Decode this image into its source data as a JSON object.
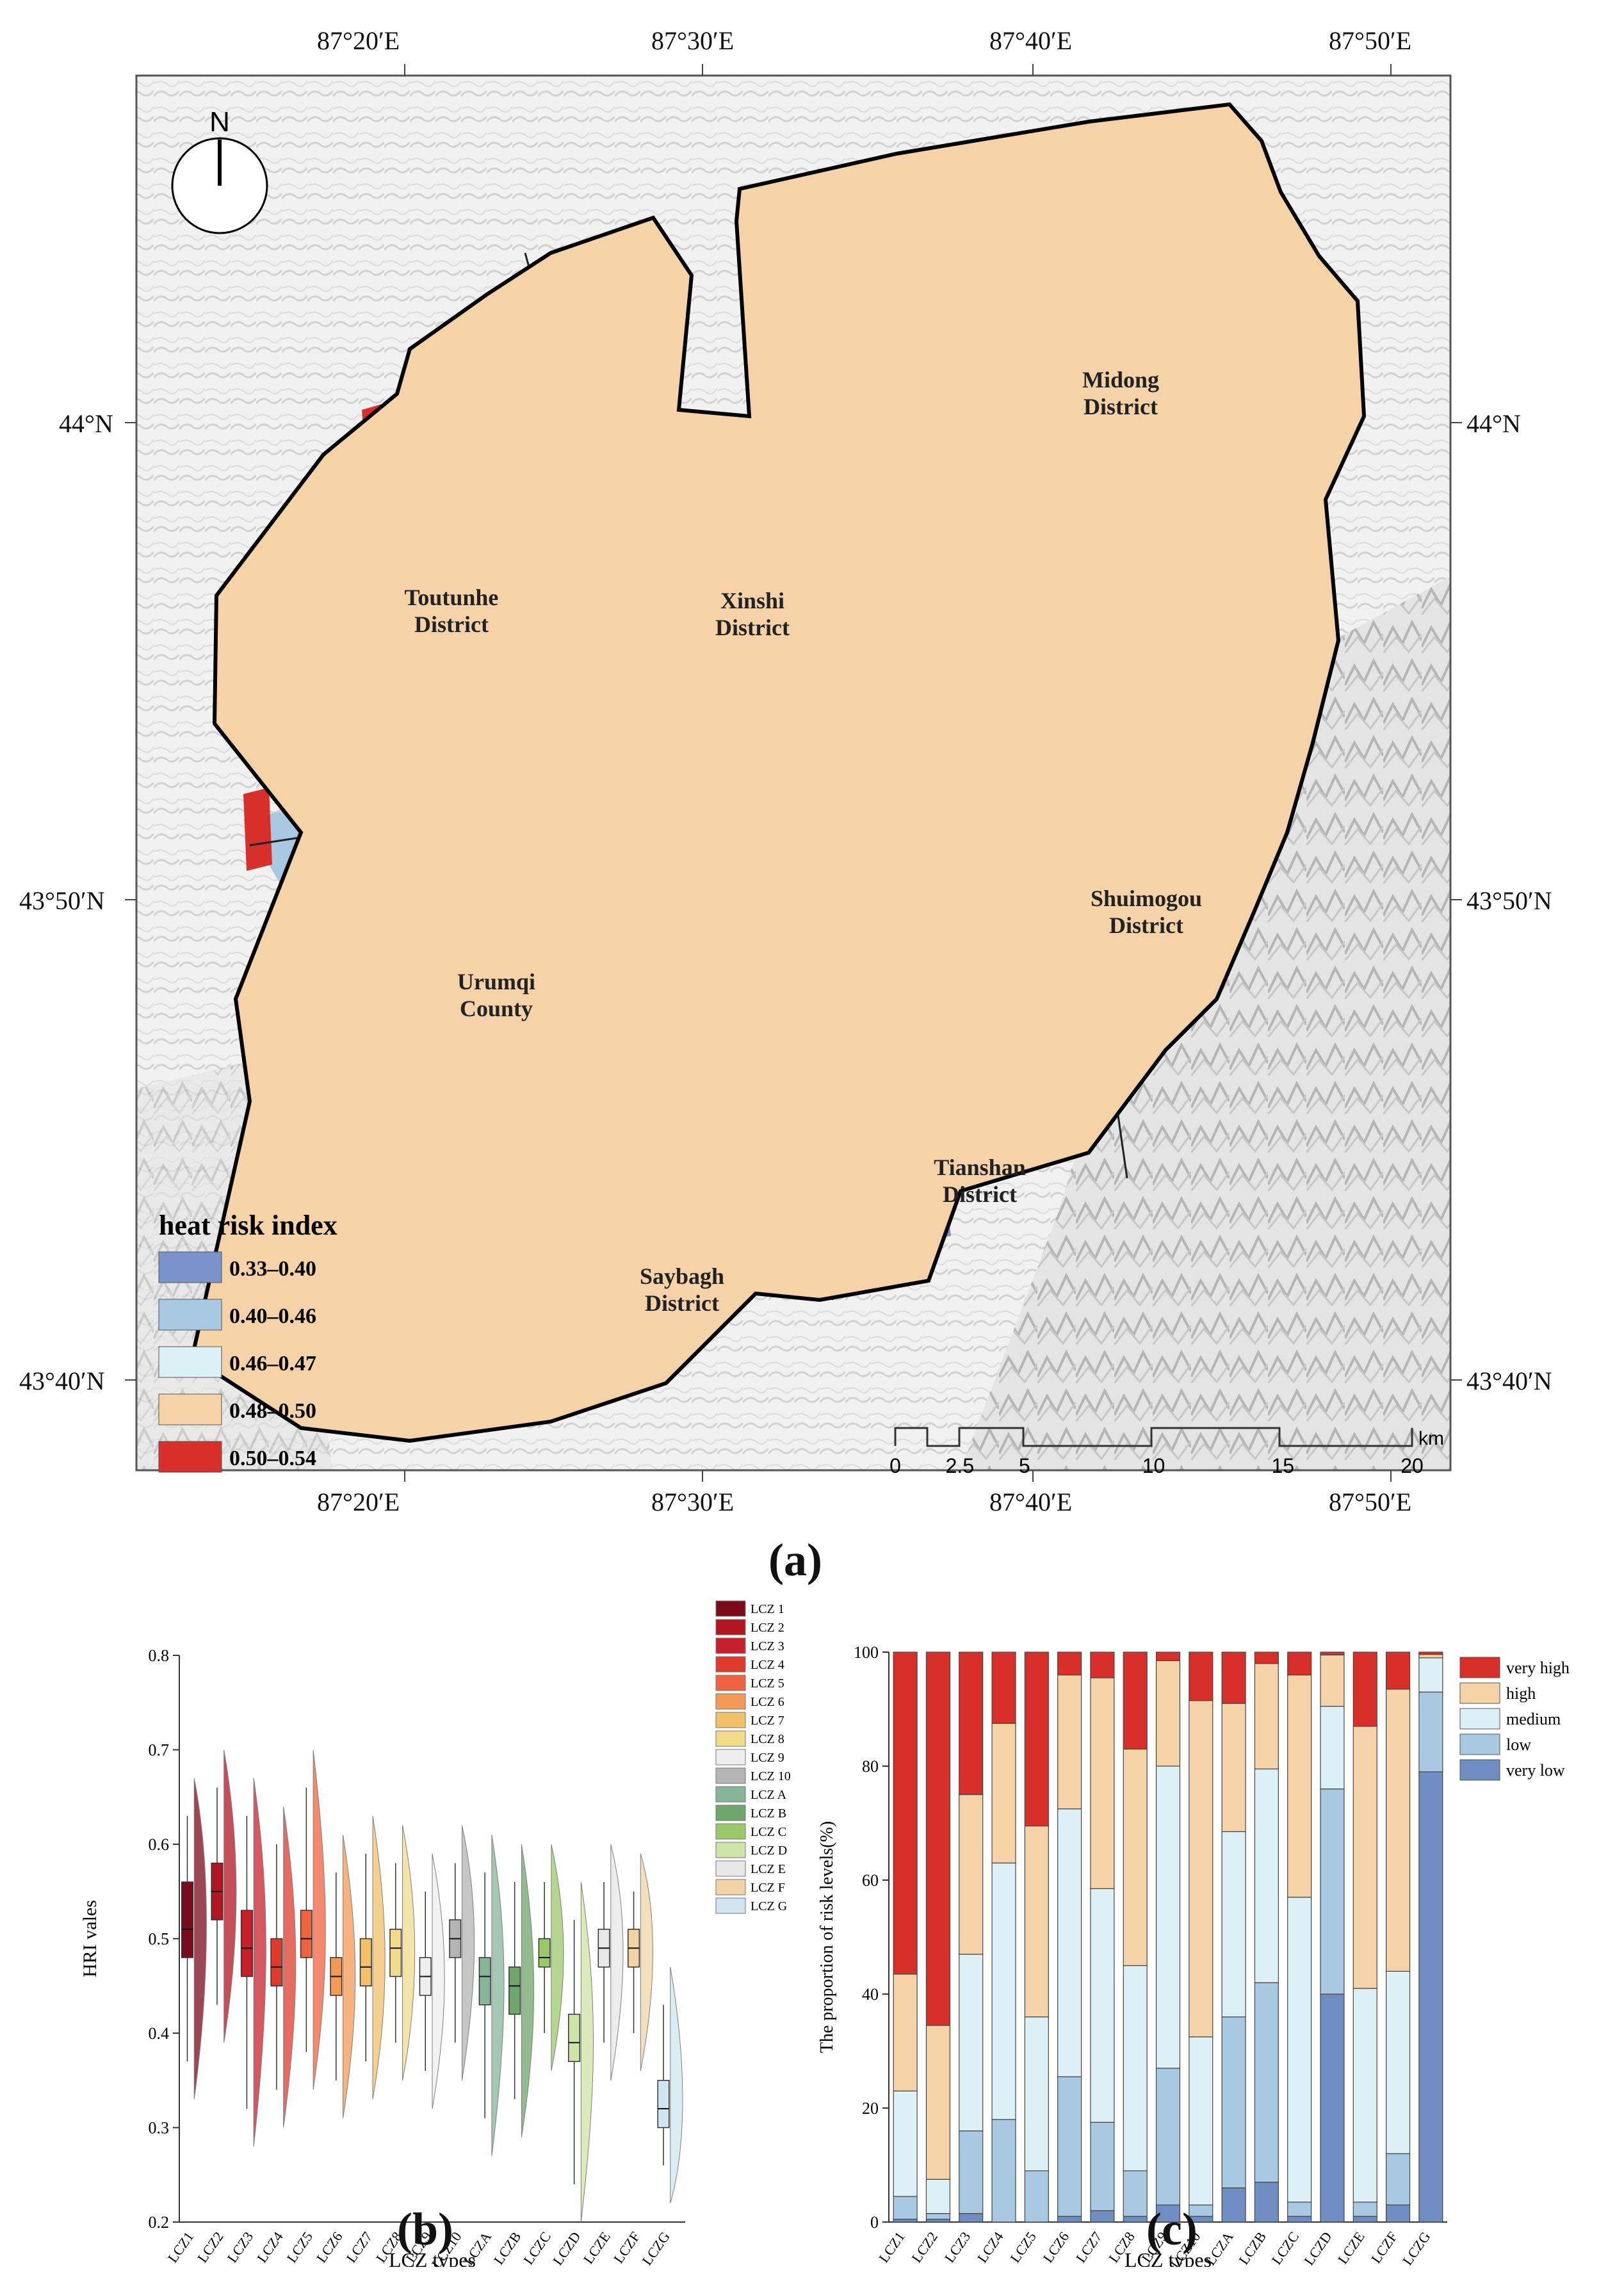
{
  "panels": {
    "a": "(a)",
    "b": "(b)",
    "c": "(c)"
  },
  "map": {
    "lon_labels": [
      "87°20′E",
      "87°30′E",
      "87°40′E",
      "87°50′E"
    ],
    "lat_labels": [
      "44°N",
      "43°50′N",
      "43°40′N"
    ],
    "north_label": "N",
    "districts": [
      {
        "name1": "Midong",
        "name2": "District"
      },
      {
        "name1": "Toutunhe",
        "name2": "District"
      },
      {
        "name1": "Xinshi",
        "name2": "District"
      },
      {
        "name1": "Shuimogou",
        "name2": "District"
      },
      {
        "name1": "Urumqi",
        "name2": "County"
      },
      {
        "name1": "Tianshan",
        "name2": "District"
      },
      {
        "name1": "Saybagh",
        "name2": "District"
      }
    ],
    "legend": {
      "title": "heat risk index",
      "items": [
        {
          "label": "0.33–0.40",
          "color": "#7a93c8"
        },
        {
          "label": "0.40–0.46",
          "color": "#a9c8e2"
        },
        {
          "label": "0.46–0.47",
          "color": "#dcf0f6"
        },
        {
          "label": "0.48–0.50",
          "color": "#f6d2a8"
        },
        {
          "label": "0.50–0.54",
          "color": "#d7302a"
        }
      ]
    },
    "scale_bar": {
      "ticks": [
        "0",
        "2.5",
        "5",
        "10",
        "15",
        "20"
      ],
      "unit": "km"
    }
  },
  "chart_data": [
    {
      "type": "box",
      "panel": "b",
      "categories": [
        "LCZ1",
        "LCZ2",
        "LCZ3",
        "LCZ4",
        "LCZ5",
        "LCZ6",
        "LCZ7",
        "LCZ8",
        "LCZ9",
        "LCZ10",
        "LCZA",
        "LCZB",
        "LCZC",
        "LCZD",
        "LCZE",
        "LCZF",
        "LCZG"
      ],
      "colors": [
        "#7b0a1a",
        "#b11522",
        "#c8202a",
        "#de3a2c",
        "#ef6440",
        "#f39a56",
        "#f3c06a",
        "#f2dc8c",
        "#eeeeee",
        "#b4b4b4",
        "#86b598",
        "#6ea66c",
        "#9bc96a",
        "#cfe4a8",
        "#e8e8e8",
        "#f2d3a6",
        "#cfe6f0"
      ],
      "legend_labels": [
        "LCZ 1",
        "LCZ 2",
        "LCZ 3",
        "LCZ 4",
        "LCZ 5",
        "LCZ 6",
        "LCZ 7",
        "LCZ 8",
        "LCZ 9",
        "LCZ 10",
        "LCZ A",
        "LCZ B",
        "LCZ C",
        "LCZ D",
        "LCZ E",
        "LCZ F",
        "LCZ G"
      ],
      "stats": [
        {
          "min": 0.37,
          "q1": 0.48,
          "median": 0.51,
          "q3": 0.56,
          "max": 0.63
        },
        {
          "min": 0.43,
          "q1": 0.52,
          "median": 0.55,
          "q3": 0.58,
          "max": 0.66
        },
        {
          "min": 0.32,
          "q1": 0.46,
          "median": 0.49,
          "q3": 0.53,
          "max": 0.63
        },
        {
          "min": 0.34,
          "q1": 0.45,
          "median": 0.47,
          "q3": 0.5,
          "max": 0.6
        },
        {
          "min": 0.38,
          "q1": 0.48,
          "median": 0.5,
          "q3": 0.53,
          "max": 0.66
        },
        {
          "min": 0.35,
          "q1": 0.44,
          "median": 0.46,
          "q3": 0.48,
          "max": 0.57
        },
        {
          "min": 0.37,
          "q1": 0.45,
          "median": 0.47,
          "q3": 0.5,
          "max": 0.59
        },
        {
          "min": 0.39,
          "q1": 0.46,
          "median": 0.49,
          "q3": 0.51,
          "max": 0.58
        },
        {
          "min": 0.36,
          "q1": 0.44,
          "median": 0.46,
          "q3": 0.48,
          "max": 0.55
        },
        {
          "min": 0.39,
          "q1": 0.48,
          "median": 0.5,
          "q3": 0.52,
          "max": 0.58
        },
        {
          "min": 0.31,
          "q1": 0.43,
          "median": 0.46,
          "q3": 0.48,
          "max": 0.57
        },
        {
          "min": 0.33,
          "q1": 0.42,
          "median": 0.45,
          "q3": 0.47,
          "max": 0.56
        },
        {
          "min": 0.4,
          "q1": 0.47,
          "median": 0.48,
          "q3": 0.5,
          "max": 0.56
        },
        {
          "min": 0.24,
          "q1": 0.37,
          "median": 0.39,
          "q3": 0.42,
          "max": 0.52
        },
        {
          "min": 0.39,
          "q1": 0.47,
          "median": 0.49,
          "q3": 0.51,
          "max": 0.56
        },
        {
          "min": 0.4,
          "q1": 0.47,
          "median": 0.49,
          "q3": 0.51,
          "max": 0.55
        },
        {
          "min": 0.26,
          "q1": 0.3,
          "median": 0.32,
          "q3": 0.35,
          "max": 0.43
        }
      ],
      "xlabel": "LCZ types",
      "ylabel": "HRI vales",
      "ylim": [
        0.2,
        0.8
      ],
      "yticks": [
        "0.2",
        "0.3",
        "0.4",
        "0.5",
        "0.6",
        "0.7",
        "0.8"
      ]
    },
    {
      "type": "stacked-bar",
      "panel": "c",
      "categories": [
        "LCZ1",
        "LCZ2",
        "LCZ3",
        "LCZ4",
        "LCZ5",
        "LCZ6",
        "LCZ7",
        "LCZ8",
        "LCZ9",
        "LCZ10",
        "LCZA",
        "LCZB",
        "LCZC",
        "LCZD",
        "LCZE",
        "LCZF",
        "LCZG"
      ],
      "series": [
        {
          "name": "very low",
          "color": "#6f8dc0",
          "values": [
            0.5,
            0.5,
            1.5,
            0,
            0,
            1,
            2,
            1,
            3,
            1,
            6,
            7,
            1,
            40,
            1,
            3,
            79
          ]
        },
        {
          "name": "low",
          "color": "#a9c8e2",
          "values": [
            4,
            1,
            14.5,
            18,
            9,
            24.5,
            15.5,
            8,
            24,
            2,
            30,
            35,
            2.5,
            36,
            2.5,
            9,
            14
          ]
        },
        {
          "name": "medium",
          "color": "#dcf0f6",
          "values": [
            18.5,
            6,
            31,
            45,
            27,
            47,
            41,
            36,
            53,
            29.5,
            32.5,
            37.5,
            53.5,
            14.5,
            37.5,
            32,
            6
          ]
        },
        {
          "name": "high",
          "color": "#f6d2a8",
          "values": [
            20.5,
            27,
            28,
            24.5,
            33.5,
            23.5,
            37,
            38,
            18.5,
            59,
            22.5,
            18.5,
            39,
            9,
            46,
            49.5,
            0.6
          ]
        },
        {
          "name": "very high",
          "color": "#d7302a",
          "values": [
            56.5,
            65.5,
            25,
            12.5,
            30.5,
            4,
            4.5,
            17,
            1.5,
            8.5,
            9,
            2,
            4,
            0.5,
            13,
            6.5,
            0.4
          ]
        }
      ],
      "xlabel": "LCZ types",
      "ylabel": "The proportion of risk levels(%)",
      "ylim": [
        0,
        100
      ],
      "yticks": [
        "0",
        "20",
        "40",
        "60",
        "80",
        "100"
      ],
      "legend_placement": "right"
    }
  ]
}
